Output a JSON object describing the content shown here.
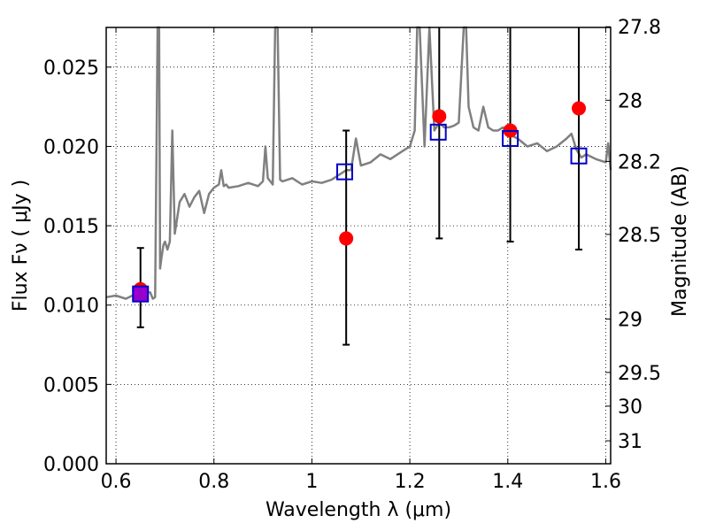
{
  "chart_data": {
    "type": "line",
    "xlabel": "Wavelength  λ (μm)",
    "ylabel": "Flux  Fν  ( μJy )",
    "ylabel_right": "Magnitude (AB)",
    "xlim": [
      0.58,
      1.61
    ],
    "ylim": [
      0.0,
      0.0275
    ],
    "grid": true,
    "x_ticks": [
      0.6,
      0.8,
      1.0,
      1.2,
      1.4,
      1.6
    ],
    "x_tick_labels": [
      "0.6",
      "0.8",
      "1",
      "1.2",
      "1.4",
      "1.6"
    ],
    "y_ticks": [
      0.0,
      0.005,
      0.01,
      0.015,
      0.02,
      0.025
    ],
    "y_tick_labels": [
      "0.000",
      "0.005",
      "0.010",
      "0.015",
      "0.020",
      "0.025"
    ],
    "mag_ticks": [
      27.8,
      28.0,
      28.2,
      28.5,
      29.0,
      29.5,
      30.0,
      31.0
    ],
    "mag_tick_labels": [
      "27.8",
      "28",
      "28.2",
      "28.5",
      "29",
      "29.5",
      "30",
      "31"
    ],
    "colors": {
      "model": "#808080",
      "observed": "#ff0000",
      "synthetic": "#0000cc",
      "errorbar": "#000000",
      "overlap": "#9900cc"
    },
    "series": [
      {
        "kind": "model_spectrum",
        "x": [
          0.58,
          0.6,
          0.62,
          0.64,
          0.66,
          0.67,
          0.675,
          0.68,
          0.685,
          0.688,
          0.69,
          0.693,
          0.697,
          0.7,
          0.705,
          0.71,
          0.715,
          0.72,
          0.73,
          0.74,
          0.75,
          0.76,
          0.77,
          0.78,
          0.79,
          0.8,
          0.81,
          0.815,
          0.82,
          0.825,
          0.83,
          0.85,
          0.87,
          0.89,
          0.9,
          0.905,
          0.91,
          0.915,
          0.92,
          0.925,
          0.93,
          0.935,
          0.94,
          0.96,
          0.98,
          1.0,
          1.02,
          1.04,
          1.06,
          1.07,
          1.08,
          1.09,
          1.1,
          1.12,
          1.14,
          1.16,
          1.18,
          1.2,
          1.21,
          1.215,
          1.22,
          1.23,
          1.24,
          1.25,
          1.26,
          1.27,
          1.28,
          1.29,
          1.3,
          1.31,
          1.315,
          1.32,
          1.33,
          1.34,
          1.35,
          1.36,
          1.37,
          1.38,
          1.39,
          1.4,
          1.42,
          1.44,
          1.46,
          1.48,
          1.5,
          1.52,
          1.53,
          1.54,
          1.55,
          1.56,
          1.58,
          1.6,
          1.605,
          1.61
        ],
        "y": [
          0.0105,
          0.0106,
          0.0104,
          0.0107,
          0.0108,
          0.0108,
          0.0104,
          0.0105,
          0.0275,
          0.0275,
          0.0123,
          0.013,
          0.0138,
          0.014,
          0.0135,
          0.014,
          0.021,
          0.0145,
          0.0165,
          0.017,
          0.0162,
          0.0168,
          0.0172,
          0.0158,
          0.017,
          0.0174,
          0.0176,
          0.0185,
          0.0175,
          0.0176,
          0.0174,
          0.0175,
          0.0177,
          0.0175,
          0.0178,
          0.02,
          0.018,
          0.0178,
          0.0176,
          0.0275,
          0.0275,
          0.0179,
          0.0178,
          0.018,
          0.0176,
          0.0178,
          0.0177,
          0.0179,
          0.0183,
          0.0185,
          0.0185,
          0.0205,
          0.0188,
          0.019,
          0.0195,
          0.0192,
          0.0196,
          0.02,
          0.021,
          0.0275,
          0.0275,
          0.02,
          0.0275,
          0.021,
          0.0215,
          0.0212,
          0.0212,
          0.0213,
          0.0215,
          0.0275,
          0.0275,
          0.0225,
          0.0212,
          0.021,
          0.0225,
          0.0212,
          0.021,
          0.021,
          0.0212,
          0.0208,
          0.0205,
          0.02,
          0.0202,
          0.0197,
          0.02,
          0.0205,
          0.0208,
          0.0198,
          0.0193,
          0.0195,
          0.0192,
          0.019,
          0.0202,
          0.0185
        ]
      },
      {
        "kind": "observed",
        "x": [
          0.65,
          1.07,
          1.26,
          1.405,
          1.545
        ],
        "y": [
          0.011,
          0.0142,
          0.0219,
          0.021,
          0.0224
        ],
        "err_low": [
          0.0086,
          0.0075,
          0.0142,
          0.014,
          0.0135
        ],
        "err_high": [
          0.0136,
          0.021,
          0.0275,
          0.0275,
          0.0275
        ]
      },
      {
        "kind": "synthetic",
        "x": [
          0.65,
          1.067,
          1.258,
          1.405,
          1.545
        ],
        "y": [
          0.0107,
          0.0184,
          0.0209,
          0.0205,
          0.0194
        ]
      }
    ]
  }
}
